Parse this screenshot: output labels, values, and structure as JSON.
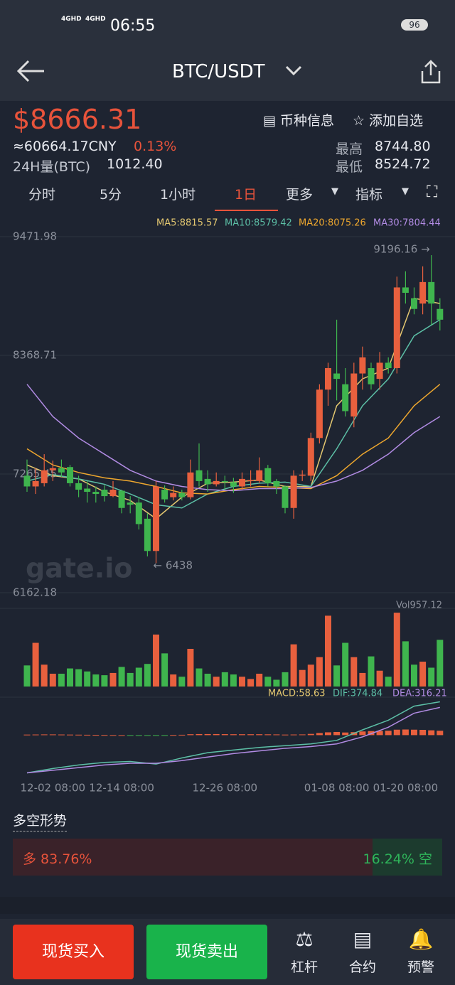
{
  "status_bar": {
    "time": "06:55",
    "battery": "96",
    "network": [
      "4GHD",
      "4GHD"
    ]
  },
  "header": {
    "title": "BTC/USDT"
  },
  "ticker": {
    "price": "$8666.31",
    "cny": "≈60664.17CNY",
    "change": "0.13%",
    "volume_label": "24H量(BTC)",
    "volume": "1012.40",
    "high_label": "最高",
    "high": "8744.80",
    "low_label": "最低",
    "low": "8524.72",
    "info": "币种信息",
    "favorite": "添加自选"
  },
  "tabs": [
    "分时",
    "5分",
    "1小时",
    "1日",
    "更多",
    "指标"
  ],
  "active_tab": 3,
  "watermark": "gate.io",
  "chart_data": {
    "type": "candlestick",
    "categories": [
      null,
      null,
      null,
      "12-02 08:00",
      null,
      null,
      null,
      null,
      null,
      null,
      null,
      "12-14 08:00",
      null,
      null,
      null,
      null,
      null,
      null,
      null,
      null,
      null,
      null,
      null,
      "12-26 08:00",
      null,
      null,
      null,
      null,
      null,
      null,
      null,
      null,
      null,
      null,
      null,
      null,
      "01-08 08:00",
      null,
      null,
      null,
      null,
      null,
      null,
      null,
      "01-20 08:00",
      null,
      null,
      null,
      null
    ],
    "open": [
      7250,
      7150,
      7180,
      7300,
      7320,
      7330,
      7180,
      7130,
      7100,
      7120,
      7060,
      7110,
      7000,
      7000,
      6850,
      6550,
      7120,
      7050,
      7090,
      7050,
      7300,
      7220,
      7170,
      7200,
      7190,
      7150,
      7200,
      7200,
      7320,
      7200,
      7150,
      6950,
      7250,
      7250,
      7600,
      8050,
      8200,
      8100,
      7800,
      8200,
      8250,
      8150,
      8300,
      8250,
      9000,
      8900,
      8850,
      9050,
      8800
    ],
    "close": [
      7150,
      7200,
      7300,
      7320,
      7280,
      7180,
      7120,
      7100,
      7080,
      7060,
      7120,
      6950,
      6980,
      6800,
      6550,
      7150,
      7030,
      7090,
      7050,
      7280,
      7200,
      7170,
      7200,
      7190,
      7150,
      7220,
      7210,
      7300,
      7180,
      7150,
      6950,
      7250,
      7260,
      7600,
      8050,
      8250,
      8150,
      7850,
      8200,
      8350,
      8100,
      8300,
      8250,
      9000,
      8950,
      8800,
      9050,
      8850,
      8700
    ],
    "high": [
      7400,
      7320,
      7450,
      7390,
      7400,
      7350,
      7250,
      7200,
      7150,
      7160,
      7200,
      7120,
      7060,
      7050,
      6900,
      7200,
      7160,
      7150,
      7120,
      7400,
      7550,
      7300,
      7280,
      7250,
      7230,
      7280,
      7300,
      7420,
      7350,
      7220,
      7160,
      7300,
      7300,
      7650,
      8100,
      8300,
      8700,
      8250,
      8300,
      8450,
      8300,
      8400,
      8350,
      9100,
      9150,
      9000,
      9196.16,
      9300,
      8900
    ],
    "low": [
      7100,
      7080,
      7150,
      7200,
      7240,
      7150,
      7050,
      7000,
      7000,
      7010,
      7050,
      6900,
      6900,
      6750,
      6500,
      6438,
      7000,
      7020,
      7020,
      7030,
      7150,
      7100,
      7150,
      7120,
      7090,
      7120,
      7150,
      7180,
      7150,
      7080,
      6900,
      6850,
      7200,
      7200,
      7550,
      7900,
      7950,
      7800,
      7700,
      8050,
      8050,
      8050,
      8200,
      8200,
      8850,
      8750,
      8750,
      8650,
      8600
    ],
    "up_color": "#e8603e",
    "down_color": "#3fb54e",
    "ylim": [
      6162.18,
      9471.98
    ],
    "yticks": [
      9471.98,
      8368.71,
      7265.45,
      6162.18
    ],
    "grid": true,
    "high_note": "9196.16 →",
    "low_note": "← 6438",
    "ma_x": [
      0,
      3,
      6,
      9,
      12,
      15,
      18,
      21,
      24,
      27,
      30,
      33,
      36,
      39,
      42,
      45,
      48
    ],
    "ma": [
      {
        "label": "MA5:8815.57",
        "color": "#e3c770",
        "values": [
          7350,
          7250,
          7220,
          7100,
          7020,
          6850,
          7050,
          7180,
          7190,
          7210,
          7150,
          7150,
          7900,
          8150,
          8250,
          8900,
          8850
        ]
      },
      {
        "label": "MA10:8579.42",
        "color": "#5cbfa6",
        "values": [
          7200,
          7260,
          7220,
          7170,
          7080,
          6980,
          6950,
          7080,
          7150,
          7180,
          7190,
          7150,
          7500,
          7900,
          8150,
          8550,
          8700
        ]
      },
      {
        "label": "MA20:8075.26",
        "color": "#eea72e",
        "values": [
          7500,
          7350,
          7280,
          7230,
          7200,
          7150,
          7090,
          7080,
          7120,
          7150,
          7140,
          7130,
          7250,
          7450,
          7600,
          7900,
          8100
        ]
      },
      {
        "label": "MA30:7804.44",
        "color": "#b18be3",
        "values": [
          8100,
          7800,
          7600,
          7450,
          7300,
          7200,
          7150,
          7120,
          7110,
          7130,
          7130,
          7140,
          7200,
          7300,
          7450,
          7650,
          7800
        ]
      }
    ],
    "volume": {
      "label": "Vol957.12",
      "ylim": [
        0,
        1000
      ],
      "values": [
        280,
        580,
        290,
        170,
        170,
        240,
        230,
        200,
        160,
        150,
        180,
        260,
        180,
        250,
        300,
        690,
        440,
        160,
        130,
        500,
        240,
        170,
        130,
        190,
        160,
        130,
        100,
        170,
        130,
        90,
        190,
        560,
        220,
        290,
        390,
        940,
        280,
        580,
        390,
        180,
        400,
        210,
        130,
        980,
        600,
        290,
        330,
        250,
        620
      ]
    },
    "macd": {
      "labels": [
        "MACD:58.63",
        "DIF:374.84",
        "DEA:316.21"
      ],
      "label_colors": [
        "#e3c770",
        "#5cbfa6",
        "#b18be3"
      ],
      "ylim": [
        -450,
        400
      ],
      "histogram": [
        6,
        7,
        8,
        8,
        7,
        6,
        5,
        4,
        3,
        2,
        1,
        0,
        -1,
        -2,
        -3,
        -6,
        -2,
        2,
        4,
        10,
        12,
        12,
        12,
        11,
        10,
        10,
        10,
        10,
        9,
        8,
        6,
        7,
        8,
        14,
        24,
        32,
        36,
        30,
        34,
        42,
        46,
        48,
        50,
        62,
        64,
        62,
        60,
        55,
        50
      ],
      "dif": {
        "color": "#5cbfa6",
        "values": [
          -430,
          -380,
          -340,
          -310,
          -300,
          -330,
          -260,
          -200,
          -170,
          -140,
          -120,
          -100,
          -60,
          60,
          170,
          330,
          380
        ]
      },
      "dea": {
        "color": "#b18be3",
        "values": [
          -430,
          -400,
          -370,
          -340,
          -320,
          -320,
          -290,
          -250,
          -210,
          -180,
          -150,
          -130,
          -100,
          -20,
          90,
          250,
          316
        ]
      }
    }
  },
  "sentiment": {
    "title": "多空形势",
    "values": [
      83.76,
      16.24
    ],
    "value_labels": [
      "多 83.76%",
      "16.24% 空"
    ]
  },
  "actions": {
    "buy": "现货买入",
    "sell": "现货卖出",
    "tools": [
      "杠杆",
      "合约",
      "预警"
    ]
  }
}
